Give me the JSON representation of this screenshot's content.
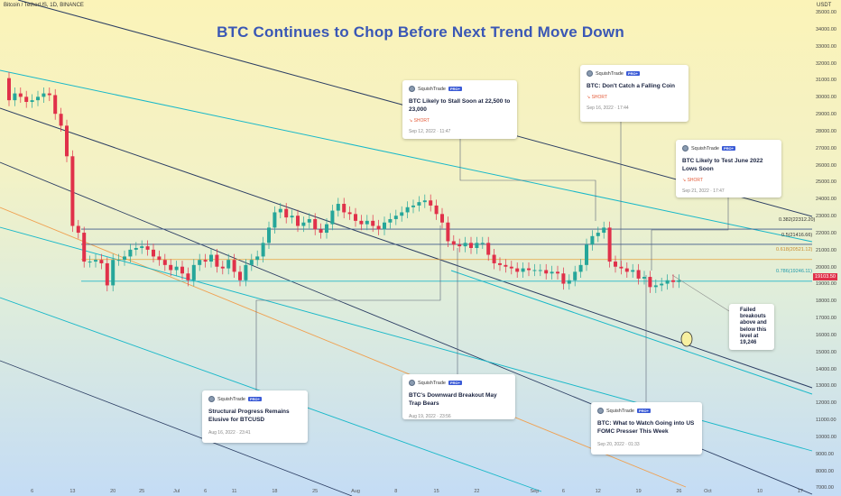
{
  "symbol": "Bitcoin / TetherUS, 1D, BINANCE",
  "headline": "BTC Continues to Chop Before Next Trend Move Down",
  "currency": "USDT",
  "current_price_tag": "19103.50",
  "fib_levels": [
    {
      "label": "0.382(22312.20)",
      "value": 22312.2,
      "color": "#3f5a8a"
    },
    {
      "label": "0.5(21416.66)",
      "value": 21416.66,
      "color": "#3f5a8a"
    },
    {
      "label": "0.618(20521.12)",
      "value": 20521.12,
      "color": "#e8a23c"
    },
    {
      "label": "0.786(19246.11)",
      "value": 19246.11,
      "color": "#27b6c9"
    }
  ],
  "ideas": [
    {
      "author": "SquishTrade",
      "badge": "PRO+",
      "title": "BTC Likely to Stall Soon at 22,500 to 23,000",
      "tag": "SHORT",
      "date": "Sep 12, 2022 · 11:47"
    },
    {
      "author": "SquishTrade",
      "badge": "PRO+",
      "title": "BTC: Don't Catch a Falling Coin",
      "tag": "SHORT",
      "date": "Sep 16, 2022 · 17:44"
    },
    {
      "author": "SquishTrade",
      "badge": "PRO+",
      "title": "BTC Likely to Test June 2022 Lows Soon",
      "tag": "SHORT",
      "date": "Sep 21, 2022 · 17:47"
    },
    {
      "author": "SquishTrade",
      "badge": "PRO+",
      "title": "Structural Progress Remains Elusive for BTCUSD",
      "tag": "",
      "date": "Aug 16, 2022 · 23:41"
    },
    {
      "author": "SquishTrade",
      "badge": "PRO+",
      "title": "BTC's Downward Breakout May Trap Bears",
      "tag": "",
      "date": "Aug 19, 2022 · 23:56"
    },
    {
      "author": "SquishTrade",
      "badge": "PRO+",
      "title": "BTC: What to Watch Going into US FOMC Presser This Week",
      "tag": "",
      "date": "Sep 20, 2022 · 01:33"
    }
  ],
  "callout_note": "Failed breakouts above and below this level at 19,246",
  "colors": {
    "up": "#26a69a",
    "down": "#e0314a",
    "channel_dark": "#2c3e63",
    "channel_cyan": "#19b8c9",
    "channel_orange": "#f0a050"
  },
  "chart_data": {
    "type": "candlestick",
    "y_axis": {
      "range": [
        6600,
        35800
      ],
      "tick_values": [
        35000,
        34000,
        33000,
        32000,
        31000,
        30000,
        29000,
        28000,
        27000,
        26000,
        25000,
        24000,
        23000,
        22000,
        21000,
        20000,
        19000,
        18000,
        17000,
        16000,
        15000,
        14000,
        13000,
        12000,
        11000,
        10000,
        9000,
        8000,
        7000
      ],
      "tick_labels": [
        "35000.00",
        "34000.00",
        "33000.00",
        "32000.00",
        "31000.00",
        "30000.00",
        "29000.00",
        "28000.00",
        "27000.00",
        "26000.00",
        "25000.00",
        "24000.00",
        "23000.00",
        "22000.00",
        "21000.00",
        "20000.00",
        "19000.00",
        "18000.00",
        "17000.00",
        "16000.00",
        "15000.00",
        "14000.00",
        "13000.00",
        "12000.00",
        "11000.00",
        "10000.00",
        "9000.00",
        "8000.00",
        "7000.00"
      ]
    },
    "x_axis": {
      "first_bar_date": "2022-06-02",
      "bar_spacing_px": 6.4,
      "ticks": [
        {
          "label": "6",
          "day": 4
        },
        {
          "label": "13",
          "day": 11
        },
        {
          "label": "20",
          "day": 18
        },
        {
          "label": "25",
          "day": 23
        },
        {
          "label": "Jul",
          "day": 29
        },
        {
          "label": "6",
          "day": 34
        },
        {
          "label": "11",
          "day": 39
        },
        {
          "label": "18",
          "day": 46
        },
        {
          "label": "25",
          "day": 53
        },
        {
          "label": "Aug",
          "day": 60
        },
        {
          "label": "8",
          "day": 67
        },
        {
          "label": "15",
          "day": 74
        },
        {
          "label": "22",
          "day": 81
        },
        {
          "label": "Sep",
          "day": 91
        },
        {
          "label": "6",
          "day": 96
        },
        {
          "label": "12",
          "day": 102
        },
        {
          "label": "19",
          "day": 109
        },
        {
          "label": "26",
          "day": 116
        },
        {
          "label": "Oct",
          "day": 121
        },
        {
          "label": "10",
          "day": 130
        },
        {
          "label": "17",
          "day": 137
        }
      ]
    },
    "closes": [
      29900,
      30300,
      30100,
      29800,
      29900,
      30100,
      30300,
      30200,
      29100,
      28400,
      26600,
      22500,
      22100,
      20400,
      20400,
      20500,
      20300,
      19000,
      20500,
      20500,
      20700,
      21100,
      21200,
      21300,
      21100,
      20700,
      20500,
      20200,
      19900,
      20100,
      19700,
      19300,
      20200,
      20500,
      20400,
      20800,
      20100,
      20000,
      20500,
      19800,
      19300,
      20200,
      20500,
      20700,
      21500,
      22400,
      23300,
      23500,
      23000,
      23100,
      22500,
      22700,
      22900,
      22300,
      22100,
      22600,
      23400,
      23800,
      23300,
      23200,
      22800,
      22600,
      22800,
      22500,
      22300,
      22700,
      22900,
      23100,
      23300,
      23600,
      23700,
      23900,
      24000,
      23700,
      23200,
      22700,
      21600,
      21400,
      21300,
      21500,
      21200,
      21500,
      21500,
      20800,
      20300,
      20200,
      20100,
      20000,
      19800,
      20000,
      19900,
      19900,
      19900,
      19700,
      19800,
      19700,
      19100,
      19300,
      19800,
      20200,
      21400,
      21900,
      22100,
      22400,
      20400,
      20100,
      20000,
      19800,
      19900,
      19400,
      19500,
      18900,
      19000,
      19100,
      19300,
      19200,
      19300
    ],
    "last_close": 19103.5,
    "notes": [
      "Failed breakouts above and below this level at 19,246"
    ]
  }
}
